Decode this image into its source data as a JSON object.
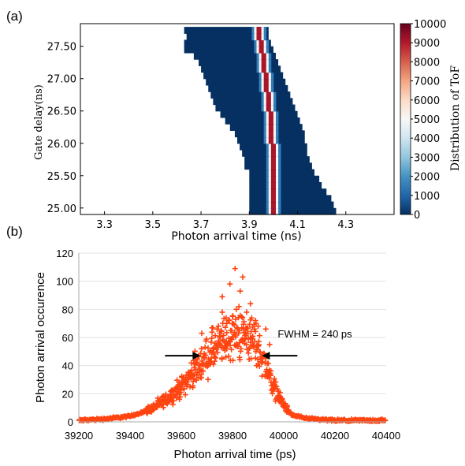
{
  "chart_data": [
    {
      "panel_label": "(a)",
      "type": "heatmap",
      "xlabel": "Photon arrival time (ns)",
      "ylabel": "Gate delay(ns)",
      "colorbar_label": "Distribution of ToF",
      "xlim": [
        3.2,
        4.5
      ],
      "ylim": [
        24.9,
        27.85
      ],
      "clim": [
        0,
        10000
      ],
      "x_ticks": [
        {
          "value": 3.3,
          "label": "3.3"
        },
        {
          "value": 3.5,
          "label": "3.5"
        },
        {
          "value": 3.7,
          "label": "3.7"
        },
        {
          "value": 3.9,
          "label": "3.9"
        },
        {
          "value": 4.1,
          "label": "4.1"
        },
        {
          "value": 4.3,
          "label": "4.3"
        }
      ],
      "y_ticks": [
        {
          "value": 25.0,
          "label": "25.00"
        },
        {
          "value": 25.5,
          "label": "25.50"
        },
        {
          "value": 26.0,
          "label": "26.00"
        },
        {
          "value": 26.5,
          "label": "26.50"
        },
        {
          "value": 27.0,
          "label": "27.00"
        },
        {
          "value": 27.5,
          "label": "27.50"
        }
      ],
      "colorbar_ticks": [
        {
          "value": 0,
          "label": "0"
        },
        {
          "value": 1000,
          "label": "1000"
        },
        {
          "value": 2000,
          "label": "2000"
        },
        {
          "value": 3000,
          "label": "3000"
        },
        {
          "value": 4000,
          "label": "4000"
        },
        {
          "value": 5000,
          "label": "5000"
        },
        {
          "value": 6000,
          "label": "6000"
        },
        {
          "value": 7000,
          "label": "7000"
        },
        {
          "value": 8000,
          "label": "8000"
        },
        {
          "value": 9000,
          "label": "9000"
        },
        {
          "value": 10000,
          "label": "10000"
        }
      ],
      "colormap": [
        "#053061",
        "#2166ac",
        "#4393c3",
        "#92c5de",
        "#d1e5f0",
        "#f7f7f7",
        "#fddbc7",
        "#f4a582",
        "#d6604d",
        "#b2182b",
        "#67001f"
      ],
      "rows": [
        {
          "gate_delay": 24.95,
          "x_start": 3.9,
          "x_end": 4.26,
          "peak_x": 4.0
        },
        {
          "gate_delay": 25.05,
          "x_start": 3.9,
          "x_end": 4.25,
          "peak_x": 4.0
        },
        {
          "gate_delay": 25.15,
          "x_start": 3.9,
          "x_end": 4.24,
          "peak_x": 4.0
        },
        {
          "gate_delay": 25.25,
          "x_start": 3.9,
          "x_end": 4.22,
          "peak_x": 4.0
        },
        {
          "gate_delay": 25.35,
          "x_start": 3.9,
          "x_end": 4.2,
          "peak_x": 4.0
        },
        {
          "gate_delay": 25.45,
          "x_start": 3.9,
          "x_end": 4.19,
          "peak_x": 4.0
        },
        {
          "gate_delay": 25.55,
          "x_start": 3.9,
          "x_end": 4.17,
          "peak_x": 4.0
        },
        {
          "gate_delay": 25.65,
          "x_start": 3.88,
          "x_end": 4.16,
          "peak_x": 4.0
        },
        {
          "gate_delay": 25.75,
          "x_start": 3.88,
          "x_end": 4.15,
          "peak_x": 4.0
        },
        {
          "gate_delay": 25.85,
          "x_start": 3.87,
          "x_end": 4.14,
          "peak_x": 4.0
        },
        {
          "gate_delay": 25.95,
          "x_start": 3.86,
          "x_end": 4.14,
          "peak_x": 4.0
        },
        {
          "gate_delay": 26.05,
          "x_start": 3.85,
          "x_end": 4.13,
          "peak_x": 3.99
        },
        {
          "gate_delay": 26.15,
          "x_start": 3.84,
          "x_end": 4.13,
          "peak_x": 3.99
        },
        {
          "gate_delay": 26.25,
          "x_start": 3.82,
          "x_end": 4.12,
          "peak_x": 3.99
        },
        {
          "gate_delay": 26.35,
          "x_start": 3.8,
          "x_end": 4.11,
          "peak_x": 3.99
        },
        {
          "gate_delay": 26.45,
          "x_start": 3.78,
          "x_end": 4.1,
          "peak_x": 3.99
        },
        {
          "gate_delay": 26.55,
          "x_start": 3.76,
          "x_end": 4.09,
          "peak_x": 3.98
        },
        {
          "gate_delay": 26.65,
          "x_start": 3.75,
          "x_end": 4.08,
          "peak_x": 3.98
        },
        {
          "gate_delay": 26.75,
          "x_start": 3.74,
          "x_end": 4.07,
          "peak_x": 3.98
        },
        {
          "gate_delay": 26.85,
          "x_start": 3.73,
          "x_end": 4.06,
          "peak_x": 3.97
        },
        {
          "gate_delay": 26.95,
          "x_start": 3.72,
          "x_end": 4.05,
          "peak_x": 3.97
        },
        {
          "gate_delay": 27.05,
          "x_start": 3.71,
          "x_end": 4.04,
          "peak_x": 3.97
        },
        {
          "gate_delay": 27.15,
          "x_start": 3.7,
          "x_end": 4.03,
          "peak_x": 3.96
        },
        {
          "gate_delay": 27.25,
          "x_start": 3.69,
          "x_end": 4.02,
          "peak_x": 3.96
        },
        {
          "gate_delay": 27.35,
          "x_start": 3.67,
          "x_end": 4.01,
          "peak_x": 3.96
        },
        {
          "gate_delay": 27.45,
          "x_start": 3.63,
          "x_end": 4.0,
          "peak_x": 3.95
        },
        {
          "gate_delay": 27.55,
          "x_start": 3.63,
          "x_end": 3.99,
          "peak_x": 3.95
        },
        {
          "gate_delay": 27.65,
          "x_start": 3.64,
          "x_end": 3.98,
          "peak_x": 3.94
        },
        {
          "gate_delay": 27.75,
          "x_start": 3.63,
          "x_end": 3.98,
          "peak_x": 3.94
        }
      ]
    },
    {
      "panel_label": "(b)",
      "type": "scatter",
      "xlabel": "Photon arrival time (ps)",
      "ylabel": "Photon arrival occurence",
      "xlim": [
        39200,
        40400
      ],
      "ylim": [
        0,
        120
      ],
      "marker": "+",
      "color": "#ff4411",
      "x_ticks": [
        {
          "value": 39200,
          "label": "39200"
        },
        {
          "value": 39400,
          "label": "39400"
        },
        {
          "value": 39600,
          "label": "39600"
        },
        {
          "value": 39800,
          "label": "39800"
        },
        {
          "value": 40000,
          "label": "40000"
        },
        {
          "value": 40200,
          "label": "40200"
        },
        {
          "value": 40400,
          "label": "40400"
        }
      ],
      "y_ticks": [
        {
          "value": 0,
          "label": "0"
        },
        {
          "value": 20,
          "label": "20"
        },
        {
          "value": 40,
          "label": "40"
        },
        {
          "value": 60,
          "label": "60"
        },
        {
          "value": 80,
          "label": "80"
        },
        {
          "value": 100,
          "label": "100"
        },
        {
          "value": 120,
          "label": "120"
        }
      ],
      "envelope": [
        [
          39200,
          1
        ],
        [
          39300,
          2
        ],
        [
          39400,
          4
        ],
        [
          39450,
          7
        ],
        [
          39500,
          11
        ],
        [
          39550,
          17
        ],
        [
          39600,
          25
        ],
        [
          39650,
          36
        ],
        [
          39700,
          46
        ],
        [
          39750,
          55
        ],
        [
          39800,
          62
        ],
        [
          39850,
          62
        ],
        [
          39880,
          58
        ],
        [
          39900,
          52
        ],
        [
          39930,
          40
        ],
        [
          39960,
          25
        ],
        [
          40000,
          12
        ],
        [
          40030,
          5
        ],
        [
          40100,
          2
        ],
        [
          40200,
          1
        ],
        [
          40400,
          1
        ]
      ],
      "outliers": [
        [
          39810,
          109
        ],
        [
          39840,
          103
        ],
        [
          39790,
          98
        ],
        [
          39830,
          93
        ],
        [
          39760,
          89
        ],
        [
          39870,
          84
        ],
        [
          39855,
          78
        ],
        [
          39775,
          74
        ],
        [
          39900,
          68
        ],
        [
          39720,
          67
        ],
        [
          39890,
          72
        ],
        [
          39930,
          66
        ],
        [
          39680,
          63
        ],
        [
          39945,
          55
        ],
        [
          39870,
          60
        ],
        [
          39800,
          75
        ],
        [
          39760,
          78
        ],
        [
          39825,
          82
        ]
      ],
      "annotation": {
        "text": "FWHM = 240 ps",
        "y": 47,
        "left_x": 39675,
        "right_x": 39915
      }
    }
  ]
}
